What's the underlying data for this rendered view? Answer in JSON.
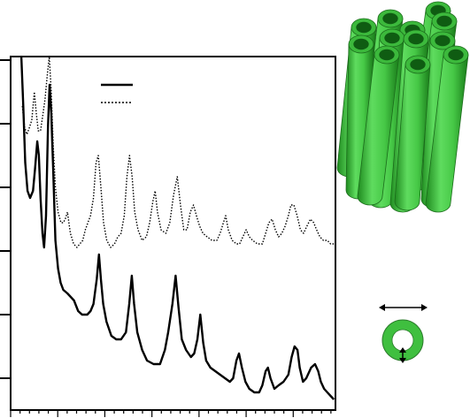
{
  "chart_data": {
    "type": "line",
    "title": "",
    "xlabel": "",
    "ylabel": "",
    "xlim": [
      0,
      100
    ],
    "ylim": [
      0,
      100
    ],
    "grid": false,
    "legend": {
      "placement": "top",
      "entries": [
        {
          "style": "solid",
          "label": ""
        },
        {
          "style": "dotted",
          "label": ""
        }
      ]
    },
    "tick_labels": {
      "x": [],
      "y": []
    },
    "series": [
      {
        "style": "solid",
        "color": "#000000",
        "points": [
          [
            3.3,
            100
          ],
          [
            3.9,
            86
          ],
          [
            4.5,
            70
          ],
          [
            5.2,
            62
          ],
          [
            6.0,
            60
          ],
          [
            6.9,
            62
          ],
          [
            7.5,
            68
          ],
          [
            8.2,
            76
          ],
          [
            8.7,
            72
          ],
          [
            9.2,
            60
          ],
          [
            9.8,
            50
          ],
          [
            10.3,
            46
          ],
          [
            10.9,
            55
          ],
          [
            11.5,
            80
          ],
          [
            12.0,
            92
          ],
          [
            12.5,
            84
          ],
          [
            13.1,
            68
          ],
          [
            13.8,
            48
          ],
          [
            14.6,
            40
          ],
          [
            15.4,
            36
          ],
          [
            16.2,
            34
          ],
          [
            17.5,
            33
          ],
          [
            18.5,
            32
          ],
          [
            19.5,
            31
          ],
          [
            20.8,
            28
          ],
          [
            22.0,
            27
          ],
          [
            23.6,
            27
          ],
          [
            24.6,
            28
          ],
          [
            25.5,
            30
          ],
          [
            26.5,
            37
          ],
          [
            27.2,
            44
          ],
          [
            27.8,
            37
          ],
          [
            28.5,
            30
          ],
          [
            29.5,
            25
          ],
          [
            31.0,
            21
          ],
          [
            32.5,
            20
          ],
          [
            34.0,
            20
          ],
          [
            35.5,
            22
          ],
          [
            36.5,
            30
          ],
          [
            37.3,
            38
          ],
          [
            38.0,
            30
          ],
          [
            39.0,
            22
          ],
          [
            40.5,
            17
          ],
          [
            42.0,
            14
          ],
          [
            44.0,
            13
          ],
          [
            46.0,
            13
          ],
          [
            47.5,
            17
          ],
          [
            48.5,
            22
          ],
          [
            49.8,
            30
          ],
          [
            50.8,
            38
          ],
          [
            51.7,
            29
          ],
          [
            52.7,
            20
          ],
          [
            54.0,
            17
          ],
          [
            55.5,
            15
          ],
          [
            56.5,
            16
          ],
          [
            57.5,
            20
          ],
          [
            58.4,
            27
          ],
          [
            59.3,
            19
          ],
          [
            60.2,
            14
          ],
          [
            61.5,
            12
          ],
          [
            63.0,
            11
          ],
          [
            64.5,
            10
          ],
          [
            66.0,
            9
          ],
          [
            67.5,
            8
          ],
          [
            68.5,
            9
          ],
          [
            69.5,
            14
          ],
          [
            70.3,
            16
          ],
          [
            71.2,
            12
          ],
          [
            72.3,
            8
          ],
          [
            73.5,
            6
          ],
          [
            75.0,
            5
          ],
          [
            76.5,
            5
          ],
          [
            77.5,
            7
          ],
          [
            78.5,
            11
          ],
          [
            79.2,
            12
          ],
          [
            80.0,
            9
          ],
          [
            81.2,
            6
          ],
          [
            82.5,
            7
          ],
          [
            84.0,
            8
          ],
          [
            85.5,
            10
          ],
          [
            86.5,
            15
          ],
          [
            87.4,
            18
          ],
          [
            88.3,
            17
          ],
          [
            89.0,
            12
          ],
          [
            90.0,
            8
          ],
          [
            91.0,
            9
          ],
          [
            92.5,
            12
          ],
          [
            93.7,
            13
          ],
          [
            94.7,
            11
          ],
          [
            95.5,
            8
          ],
          [
            96.5,
            6
          ],
          [
            97.5,
            5
          ],
          [
            98.5,
            4
          ],
          [
            99.5,
            3
          ]
        ]
      },
      {
        "style": "dotted",
        "color": "#000000",
        "points": [
          [
            3.6,
            86
          ],
          [
            4.3,
            80
          ],
          [
            5.0,
            78
          ],
          [
            5.8,
            80
          ],
          [
            6.5,
            82
          ],
          [
            7.3,
            90
          ],
          [
            7.9,
            84
          ],
          [
            8.5,
            79
          ],
          [
            9.2,
            79
          ],
          [
            10.0,
            84
          ],
          [
            10.6,
            88
          ],
          [
            11.3,
            95
          ],
          [
            11.9,
            100
          ],
          [
            12.5,
            90
          ],
          [
            13.1,
            75
          ],
          [
            13.8,
            63
          ],
          [
            14.6,
            56
          ],
          [
            15.5,
            53
          ],
          [
            16.2,
            53
          ],
          [
            16.8,
            54
          ],
          [
            17.5,
            56
          ],
          [
            18.4,
            50
          ],
          [
            19.4,
            47
          ],
          [
            20.4,
            46
          ],
          [
            21.3,
            47
          ],
          [
            22.2,
            48
          ],
          [
            23.0,
            51
          ],
          [
            23.8,
            53
          ],
          [
            24.6,
            55
          ],
          [
            25.5,
            60
          ],
          [
            26.3,
            70
          ],
          [
            27.0,
            72
          ],
          [
            27.8,
            63
          ],
          [
            28.6,
            53
          ],
          [
            29.6,
            48
          ],
          [
            30.8,
            46
          ],
          [
            32.0,
            47
          ],
          [
            33.0,
            49
          ],
          [
            34.0,
            50
          ],
          [
            35.0,
            55
          ],
          [
            35.8,
            66
          ],
          [
            36.6,
            72
          ],
          [
            37.4,
            66
          ],
          [
            38.2,
            56
          ],
          [
            39.2,
            51
          ],
          [
            40.5,
            48
          ],
          [
            41.8,
            49
          ],
          [
            42.8,
            53
          ],
          [
            43.8,
            59
          ],
          [
            44.5,
            62
          ],
          [
            45.2,
            56
          ],
          [
            46.3,
            51
          ],
          [
            47.8,
            50
          ],
          [
            49.0,
            53
          ],
          [
            50.2,
            61
          ],
          [
            51.3,
            66
          ],
          [
            52.3,
            58
          ],
          [
            53.3,
            51
          ],
          [
            54.3,
            51
          ],
          [
            55.3,
            56
          ],
          [
            56.3,
            58
          ],
          [
            57.2,
            55
          ],
          [
            58.2,
            52
          ],
          [
            59.2,
            50
          ],
          [
            60.5,
            49
          ],
          [
            62.0,
            48
          ],
          [
            63.5,
            48
          ],
          [
            64.5,
            50
          ],
          [
            65.5,
            53
          ],
          [
            66.2,
            55
          ],
          [
            67.0,
            51
          ],
          [
            68.2,
            48
          ],
          [
            69.5,
            47
          ],
          [
            70.5,
            47
          ],
          [
            71.5,
            49
          ],
          [
            72.5,
            51
          ],
          [
            73.5,
            49
          ],
          [
            74.5,
            48
          ],
          [
            76.0,
            47
          ],
          [
            77.5,
            47
          ],
          [
            78.5,
            50
          ],
          [
            79.5,
            53
          ],
          [
            80.5,
            54
          ],
          [
            81.5,
            51
          ],
          [
            82.5,
            49
          ],
          [
            83.5,
            50
          ],
          [
            84.5,
            52
          ],
          [
            85.5,
            55
          ],
          [
            86.3,
            58
          ],
          [
            87.2,
            58
          ],
          [
            88.2,
            55
          ],
          [
            89.2,
            51
          ],
          [
            90.2,
            50
          ],
          [
            91.2,
            52
          ],
          [
            92.3,
            54
          ],
          [
            93.3,
            53
          ],
          [
            94.2,
            51
          ],
          [
            95.2,
            49
          ],
          [
            96.3,
            48
          ],
          [
            97.5,
            48
          ],
          [
            98.5,
            47
          ],
          [
            99.5,
            47
          ]
        ]
      }
    ],
    "y_major_ticks": [
      9,
      27,
      45,
      63,
      81,
      99
    ],
    "x_major_ticks": [
      0,
      14.5,
      29,
      43.5,
      58,
      72.5,
      87
    ],
    "x_minor_step": 2.9
  },
  "illustration": {
    "bundle_color": "#3cb93c",
    "tube_inner_color": "#0f5c12",
    "ring_color": "#3fbf3f",
    "arrows": [
      "outer-diameter-arrow",
      "wall-thickness-arrow"
    ]
  }
}
